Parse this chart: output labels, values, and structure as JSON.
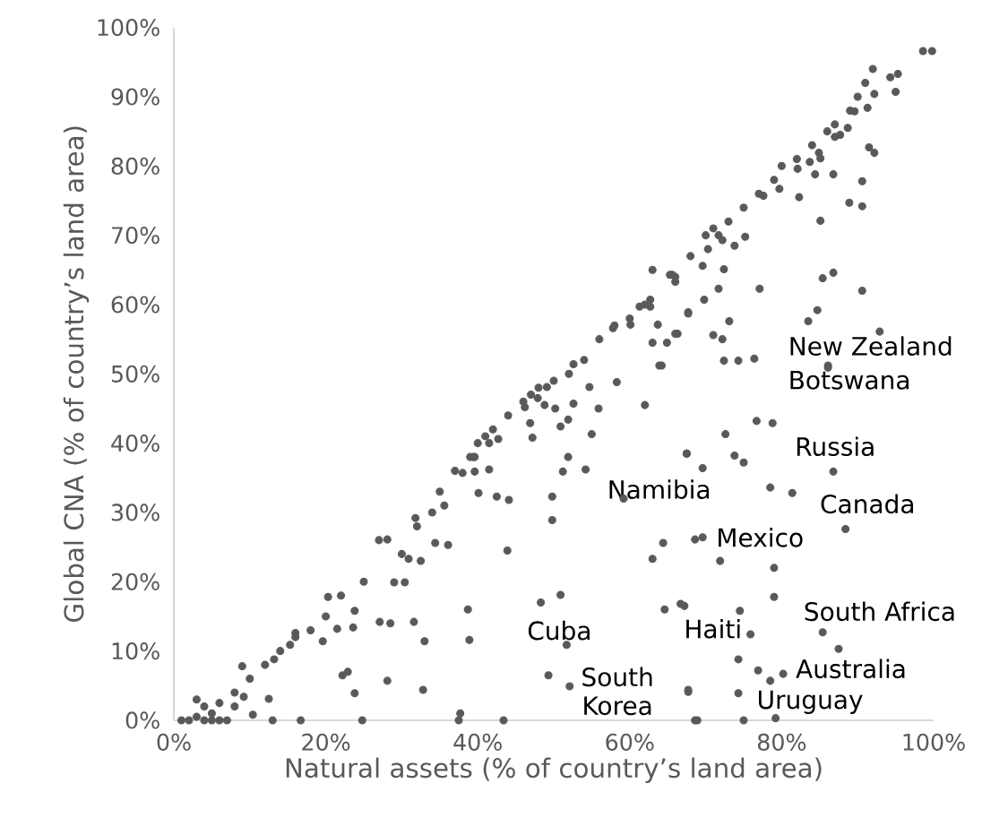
{
  "chart_data": {
    "type": "scatter",
    "xlabel": "Natural assets (% of country’s land area)",
    "ylabel": "Global CNA (% of country’s land area)",
    "series": [
      {
        "color": "#595959",
        "x": [
          1,
          2,
          3,
          4,
          4,
          5,
          6,
          6,
          7,
          8,
          3,
          5,
          8,
          10,
          12,
          14,
          16,
          18,
          20,
          22,
          25,
          27,
          30,
          32,
          34,
          35,
          37,
          39,
          40,
          41,
          42,
          44,
          46,
          47,
          48,
          50,
          52,
          54,
          56,
          58,
          60,
          62,
          63,
          66,
          68,
          70,
          71,
          73,
          75,
          77,
          79,
          80,
          82,
          84,
          86,
          87,
          89,
          90,
          91,
          92,
          98.6,
          99.8,
          94.3,
          95.3,
          95,
          92.2,
          89.6,
          91.3,
          88.7,
          87,
          87.7,
          91.5,
          92.2,
          84.9,
          85.1,
          83.7,
          82.1,
          84.4,
          86.8,
          90.6,
          77.6,
          79.7,
          82.3,
          88.9,
          90.6,
          85.1,
          71.7,
          72.2,
          73.8,
          75.2,
          70.3,
          69.6,
          72.4,
          65.6,
          85.4,
          86.8,
          77.1,
          71.7,
          90.6,
          69.8,
          67.7,
          62.7,
          61.3,
          73.1,
          63.7,
          84.7,
          83.5,
          57.8,
          60.1,
          66.3,
          71,
          63,
          64.9,
          72.2,
          92.9,
          64.2,
          72.4,
          74.3,
          76.4,
          86.1,
          9.0,
          9.2,
          10.4,
          12.5,
          13,
          13.2,
          15.3,
          16,
          16.7,
          19.6,
          20.3,
          21.5,
          22.2,
          22.9,
          23.6,
          23.8,
          23.8,
          24.8,
          27.1,
          28.1,
          28.1,
          28.5,
          29,
          30.4,
          30.9,
          31.8,
          31.6,
          32.5,
          33,
          32.8,
          34.4,
          39.6,
          51.9,
          38,
          39.6,
          41.5,
          51.2,
          54.2,
          35.6,
          40.1,
          42.5,
          44.1,
          49.8,
          49.8,
          59.2,
          36.1,
          43.9,
          64.4,
          63,
          68.6,
          38.7,
          38.9,
          48.3,
          50.9,
          51.7,
          49.3,
          52.1,
          37.7,
          37.5,
          43.4,
          64.6,
          67.2,
          67.7,
          68.6,
          65.3,
          66,
          62.7,
          67.7,
          66,
          63.9,
          52.6,
          58.3,
          54.7,
          49.1,
          47.9,
          46.2,
          48.8,
          50.2,
          52.6,
          55.9,
          62,
          46.9,
          51.9,
          50.9,
          47.2,
          55,
          41.5,
          42.7,
          39.4,
          67.5,
          86.1,
          72.6,
          76.7,
          78.8,
          67.5,
          69.6,
          73.8,
          75,
          86.8,
          81.4,
          78.5,
          88.4,
          69.6,
          71.9,
          79,
          79,
          66.7,
          74.5,
          75.9,
          85.4,
          87.5,
          74.3,
          76.9,
          78.5,
          80.2,
          67.7,
          74.3,
          68.9,
          75,
          79.2
        ],
        "values": [
          0,
          0,
          0.5,
          0,
          2,
          1,
          0,
          2.5,
          0,
          2,
          3,
          0,
          4,
          6,
          8,
          10,
          12,
          13,
          15,
          18,
          20,
          26,
          24,
          28,
          30,
          33,
          36,
          38,
          40,
          41,
          42,
          44,
          46,
          47,
          48,
          49,
          50,
          52,
          55,
          57,
          58,
          60,
          65,
          64,
          67,
          70,
          71,
          72,
          74,
          76,
          78,
          80,
          81,
          83,
          85,
          86,
          88,
          90,
          92,
          94,
          96.6,
          96.6,
          92.8,
          93.3,
          90.7,
          90.4,
          87.9,
          88.4,
          85.5,
          84.2,
          84.5,
          82.7,
          81.9,
          81.9,
          81.1,
          80.6,
          79.6,
          78.8,
          78.8,
          77.8,
          75.7,
          76.7,
          75.5,
          74.7,
          74.2,
          72.1,
          70,
          69.3,
          68.5,
          69.8,
          68,
          65.6,
          65.1,
          64.3,
          63.8,
          64.6,
          62.3,
          62.3,
          62,
          60.7,
          58.9,
          60.7,
          59.7,
          57.6,
          57.1,
          59.2,
          57.6,
          56.6,
          57.1,
          55.8,
          55.6,
          54.5,
          54.5,
          55,
          56.1,
          51.2,
          51.9,
          51.9,
          52.2,
          51.2,
          7.8,
          3.4,
          0.8,
          3.1,
          0,
          8.8,
          10.9,
          12.6,
          0,
          11.4,
          17.8,
          13.2,
          6.5,
          7,
          13.4,
          15.8,
          3.9,
          0,
          14.2,
          26.1,
          5.7,
          14,
          19.9,
          19.9,
          23.3,
          29.2,
          14.2,
          23,
          11.4,
          4.4,
          25.6,
          38,
          38,
          35.7,
          35.9,
          36.2,
          35.9,
          36.2,
          31,
          32.8,
          32.3,
          31.8,
          32.3,
          28.9,
          32,
          25.3,
          24.5,
          25.6,
          23.3,
          26.1,
          16,
          11.6,
          17,
          18.1,
          10.9,
          6.5,
          4.9,
          1,
          0,
          0,
          16,
          16.5,
          4.1,
          0,
          64.3,
          63.3,
          59.7,
          58.7,
          55.8,
          51.2,
          51.4,
          48.8,
          48.1,
          48.1,
          46.5,
          45.2,
          45.5,
          45,
          45.7,
          45,
          45.5,
          42.9,
          43.4,
          42.4,
          40.8,
          41.3,
          40,
          40.6,
          38,
          38.5,
          50.9,
          41.3,
          43.2,
          42.9,
          38.5,
          36.4,
          38.2,
          37.2,
          35.9,
          32.8,
          33.6,
          27.6,
          26.4,
          23,
          22,
          17.8,
          16.8,
          15.8,
          12.4,
          12.7,
          10.3,
          8.8,
          7.2,
          5.7,
          6.7,
          4.4,
          3.9,
          0,
          0,
          0.3
        ]
      }
    ],
    "marker": "circle",
    "grid": false,
    "xlim": [
      0,
      100
    ],
    "ylim": [
      0,
      100
    ],
    "xticks": [
      {
        "value": 0,
        "label": "0%"
      },
      {
        "value": 20,
        "label": "20%"
      },
      {
        "value": 40,
        "label": "40%"
      },
      {
        "value": 60,
        "label": "60%"
      },
      {
        "value": 80,
        "label": "80%"
      },
      {
        "value": 100,
        "label": "100%"
      }
    ],
    "yticks": [
      {
        "value": 0,
        "label": "0%"
      },
      {
        "value": 10,
        "label": "10%"
      },
      {
        "value": 20,
        "label": "20%"
      },
      {
        "value": 30,
        "label": "30%"
      },
      {
        "value": 40,
        "label": "40%"
      },
      {
        "value": 50,
        "label": "50%"
      },
      {
        "value": 60,
        "label": "60%"
      },
      {
        "value": 70,
        "label": "70%"
      },
      {
        "value": 80,
        "label": "80%"
      },
      {
        "value": 90,
        "label": "90%"
      },
      {
        "value": 100,
        "label": "100%"
      }
    ],
    "annotations": [
      {
        "text": "New Zealand",
        "x": 92.9,
        "y": 56.1
      },
      {
        "text": "Botswana",
        "x": 86.1,
        "y": 50.9
      },
      {
        "text": "Russia",
        "x": 78.8,
        "y": 42.9
      },
      {
        "text": "Namibia",
        "x": 78.5,
        "y": 33.6
      },
      {
        "text": "Canada",
        "x": 81.4,
        "y": 32.8
      },
      {
        "text": "Mexico",
        "x": 69.6,
        "y": 26.4
      },
      {
        "text": "South Africa",
        "x": 79,
        "y": 17.8
      },
      {
        "text": "Cuba",
        "x": 51.7,
        "y": 10.9
      },
      {
        "text": "Haiti",
        "x": 74.5,
        "y": 15.8
      },
      {
        "text": "Australia",
        "x": 87.5,
        "y": 10.3
      },
      {
        "text": "South Korea",
        "x": 52.1,
        "y": 4.9
      },
      {
        "text": "Uruguay",
        "x": 74.3,
        "y": 3.9
      }
    ]
  }
}
